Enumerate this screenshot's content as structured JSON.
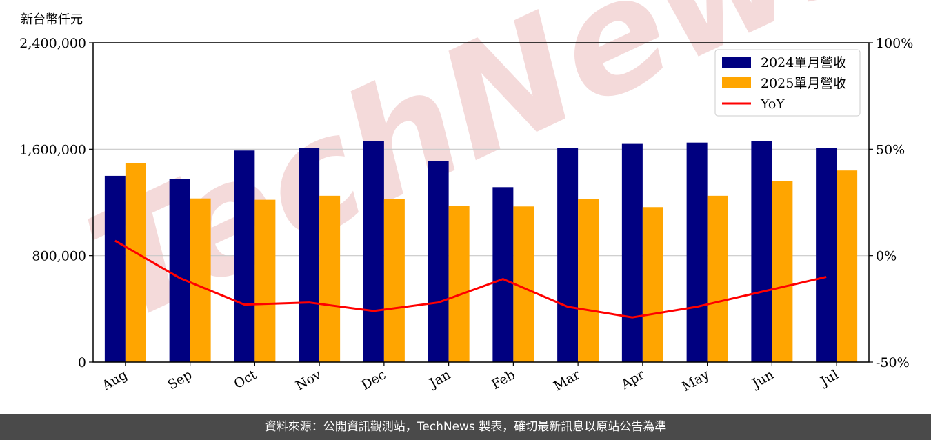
{
  "unit_label": "新台幣仟元",
  "watermark": "TechNews",
  "footer": "資料來源：公開資訊觀測站，TechNews 製表，確切最新訊息以原站公告為準",
  "colors": {
    "series_2024": "#000080",
    "series_2025": "#FFA500",
    "yoy": "#FF0000",
    "watermark": "#f3d6d6"
  },
  "chart_data": {
    "type": "bar",
    "categories": [
      "Aug",
      "Sep",
      "Oct",
      "Nov",
      "Dec",
      "Jan",
      "Feb",
      "Mar",
      "Apr",
      "May",
      "Jun",
      "Jul"
    ],
    "series": [
      {
        "name": "2024單月營收",
        "values": [
          1400000,
          1375000,
          1590000,
          1610000,
          1660000,
          1510000,
          1315000,
          1610000,
          1640000,
          1650000,
          1660000,
          1610000
        ]
      },
      {
        "name": "2025單月營收",
        "values": [
          1495000,
          1230000,
          1220000,
          1250000,
          1225000,
          1175000,
          1170000,
          1225000,
          1165000,
          1250000,
          1360000,
          1440000
        ]
      }
    ],
    "line_series": {
      "name": "YoY",
      "axis": "right",
      "values": [
        7,
        -10.5,
        -23,
        -22,
        -26,
        -22,
        -11,
        -24,
        -29,
        -24,
        -17,
        -10
      ]
    },
    "ylim": [
      0,
      2400000
    ],
    "yticks": [
      "0",
      "800,000",
      "1,600,000",
      "2,400,000"
    ],
    "y2lim": [
      -50,
      100
    ],
    "y2ticks": [
      "-50%",
      "0%",
      "50%",
      "100%"
    ],
    "grid": "horizontal",
    "legend_position": "top-right"
  }
}
